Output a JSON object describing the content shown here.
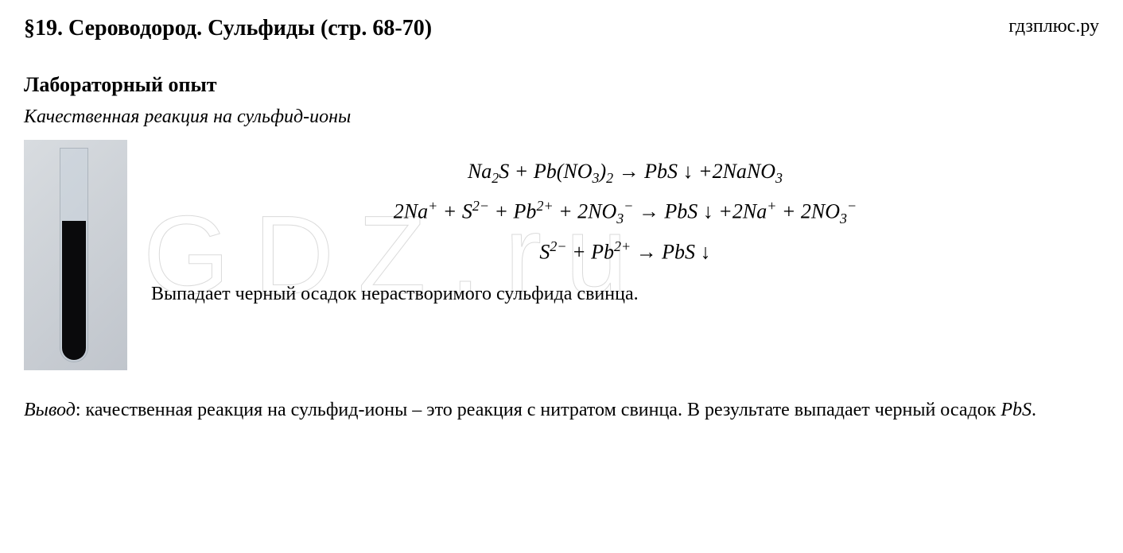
{
  "header": {
    "section_title": "§19. Сероводород. Сульфиды (стр. 68-70)",
    "site_label": "гдзплюс.ру"
  },
  "lab": {
    "title": "Лабораторный опыт",
    "subtitle": "Качественная реакция на сульфид-ионы"
  },
  "equations": {
    "eq1_html": "Na<span class='sub'>2</span>S + Pb(NO<span class='sub'>3</span>)<span class='sub'>2</span> → PbS ↓ +2NaNO<span class='sub'>3</span>",
    "eq2_html": "2Na<span class='sup'>+</span> + S<span class='sup'>2−</span> + Pb<span class='sup'>2+</span> + 2NO<span class='sub'>3</span><span class='sup'>−</span> → PbS ↓ +2Na<span class='sup'>+</span> + 2NO<span class='sub'>3</span><span class='sup'>−</span>",
    "eq3_html": "S<span class='sup'>2−</span> + Pb<span class='sup'>2+</span> → PbS ↓"
  },
  "observation": "Выпадает черный осадок нерастворимого сульфида свинца.",
  "conclusion": {
    "label": "Вывод",
    "text_part1": ": качественная реакция на сульфид-ионы – это реакция с нитратом свинца. В результате выпадает черный осадок ",
    "formula": "PbS",
    "text_part2": "."
  },
  "watermark": "GDZ.ru",
  "styling": {
    "page_bg": "#ffffff",
    "text_color": "#000000",
    "title_fontsize": 28,
    "body_fontsize": 24,
    "equation_fontsize": 26,
    "tube_liquid_color": "#0a0a0c",
    "tube_bg_gradient_start": "#d8dce0",
    "tube_bg_gradient_end": "#c0c5cc",
    "watermark_stroke": "rgba(150,150,150,0.35)",
    "font_family": "Georgia, Times New Roman, serif"
  }
}
